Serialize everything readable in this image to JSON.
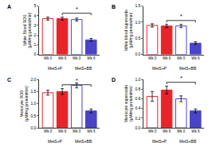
{
  "chart_data": [
    {
      "type": "bar",
      "title": "A",
      "y_label": [
        "White Blood ROS",
        "(μM/mg protein/min)"
      ],
      "categories": [
        "Wk 0",
        "Wk 6"
      ],
      "series": [
        {
          "name": "MetS+P",
          "color": "#e8232a",
          "values": [
            3.7,
            3.7
          ],
          "errors": [
            0.15,
            0.15
          ]
        },
        {
          "name": "MetS+BB",
          "color": "#4a44c6",
          "values": [
            3.6,
            1.5
          ],
          "errors": [
            0.15,
            0.15
          ]
        }
      ],
      "ylim": [
        0,
        5
      ],
      "yticks": [
        0,
        1,
        2,
        3,
        4,
        5
      ],
      "comparisons": [
        {
          "from": [
            "MetS+P",
            "Wk 6"
          ],
          "to": [
            "MetS+BB",
            "Wk 6"
          ],
          "label": "*"
        }
      ]
    },
    {
      "type": "bar",
      "title": "B",
      "y_label": [
        "White blood superoxide",
        "(μM/mg protein/min)"
      ],
      "categories": [
        "Wk 0",
        "Wk 6"
      ],
      "series": [
        {
          "name": "MetS+P",
          "color": "#e8232a",
          "values": [
            0.9,
            0.88
          ],
          "errors": [
            0.05,
            0.05
          ]
        },
        {
          "name": "MetS+BB",
          "color": "#4a44c6",
          "values": [
            0.88,
            0.35
          ],
          "errors": [
            0.05,
            0.04
          ]
        }
      ],
      "ylim": [
        0,
        1.5
      ],
      "yticks": [
        {
          "value": 0,
          "label": "0.0"
        },
        0.5,
        {
          "value": 1,
          "label": "1.0"
        },
        1.5
      ],
      "comparisons": [
        {
          "from": [
            "MetS+P",
            "Wk 6"
          ],
          "to": [
            "MetS+BB",
            "Wk 6"
          ],
          "label": "*"
        }
      ]
    },
    {
      "type": "bar",
      "title": "C",
      "y_label": [
        "Monocyte ROS",
        "(μM/mg protein/min)"
      ],
      "categories": [
        "Wk 0",
        "Wk 6"
      ],
      "series": [
        {
          "name": "MetS+P",
          "color": "#e8232a",
          "values": [
            1.45,
            1.5
          ],
          "errors": [
            0.1,
            0.12
          ]
        },
        {
          "name": "MetS+BB",
          "color": "#4a44c6",
          "values": [
            1.75,
            0.7
          ],
          "errors": [
            0.1,
            0.08
          ]
        }
      ],
      "ylim": [
        0,
        2
      ],
      "yticks": [
        {
          "value": 0,
          "label": "0.0"
        },
        0.5,
        {
          "value": 1,
          "label": "1.0"
        },
        1.5,
        {
          "value": 2,
          "label": "2.0"
        }
      ],
      "comparisons": [
        {
          "from": [
            "MetS+P",
            "Wk 6"
          ],
          "to": [
            "MetS+BB",
            "Wk 6"
          ],
          "label": "*"
        }
      ]
    },
    {
      "type": "bar",
      "title": "D",
      "y_label": [
        "Monocyte superoxide",
        "(μM/mg protein/min)"
      ],
      "categories": [
        "Wk 0",
        "Wk 6"
      ],
      "series": [
        {
          "name": "MetS+P",
          "color": "#e8232a",
          "values": [
            0.65,
            0.78
          ],
          "errors": [
            0.1,
            0.08
          ]
        },
        {
          "name": "MetS+BB",
          "color": "#4a44c6",
          "values": [
            0.6,
            0.35
          ],
          "errors": [
            0.06,
            0.04
          ]
        }
      ],
      "ylim": [
        0,
        1
      ],
      "yticks": [
        {
          "value": 0,
          "label": "0.0"
        },
        0.2,
        0.4,
        0.6,
        0.8,
        {
          "value": 1,
          "label": "1.0"
        }
      ],
      "comparisons": [
        {
          "from": [
            "MetS+P",
            "Wk 6"
          ],
          "to": [
            "MetS+BB",
            "Wk 6"
          ],
          "label": "*"
        }
      ]
    }
  ]
}
